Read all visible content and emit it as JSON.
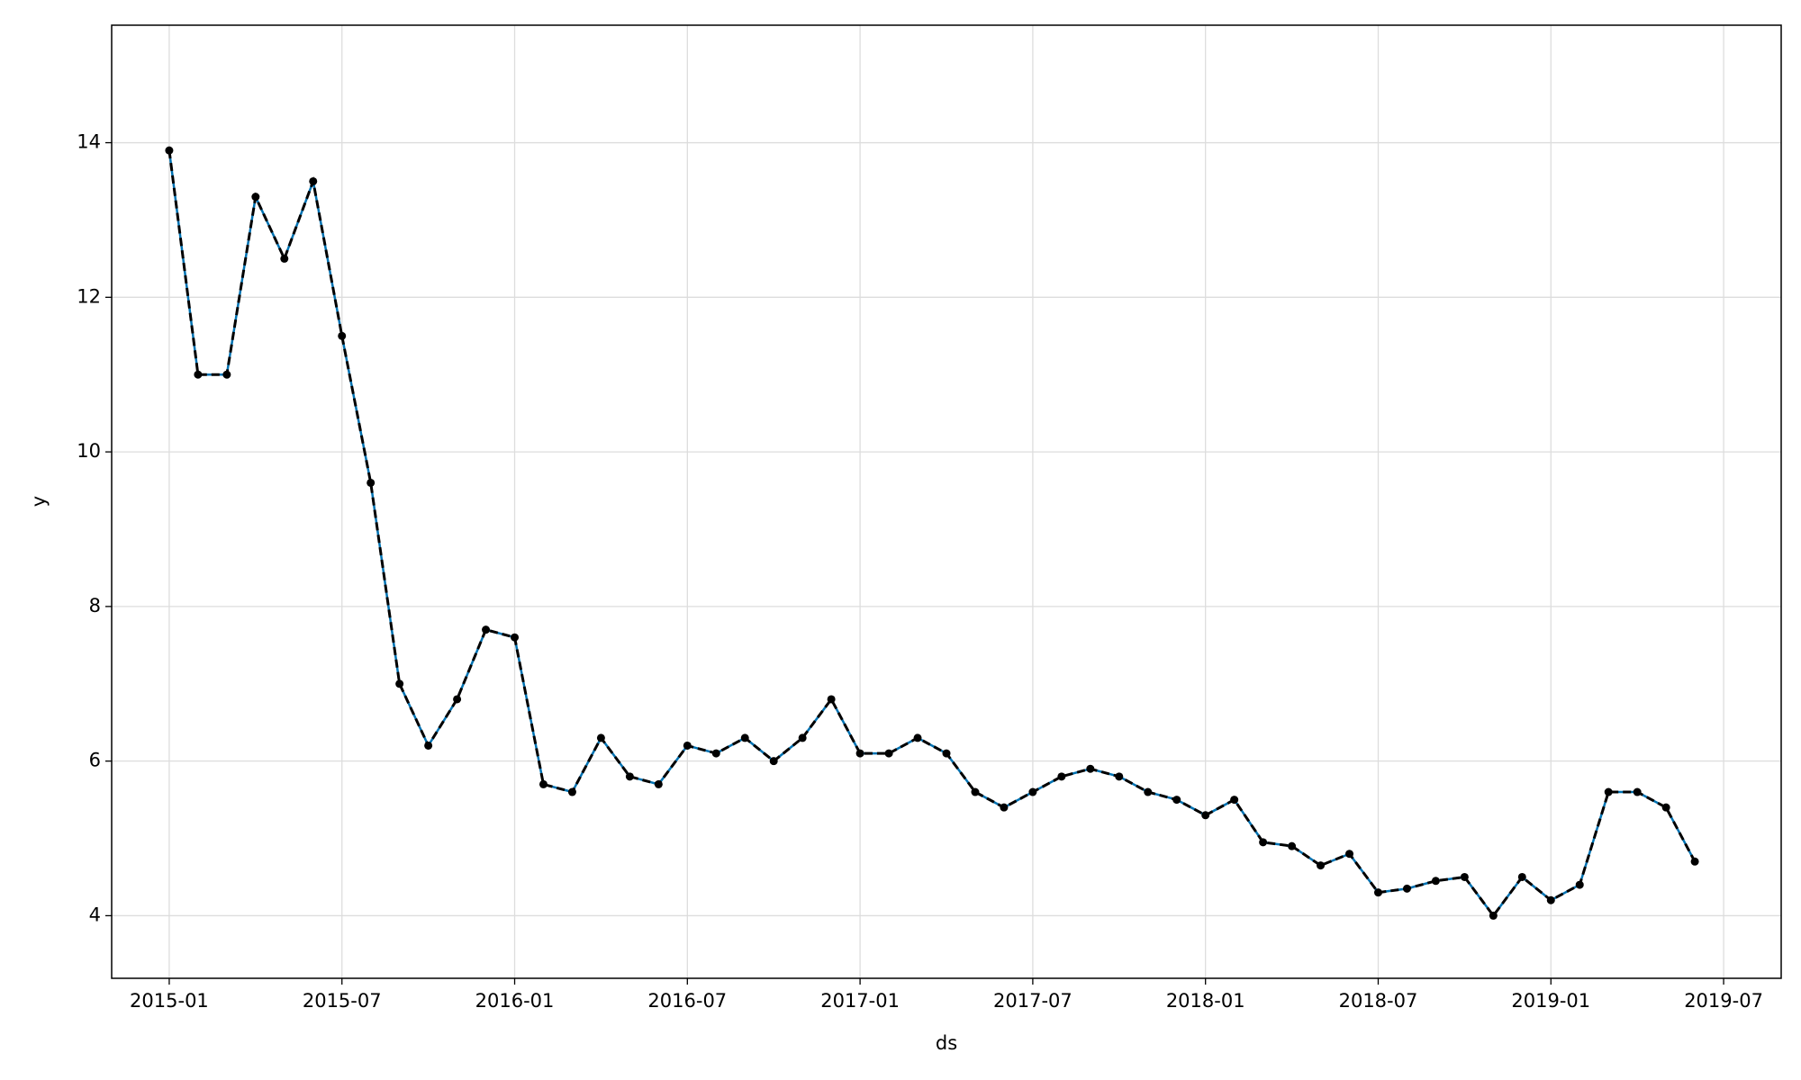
{
  "chart_data": {
    "type": "line",
    "x_label": "ds",
    "y_label": "y",
    "x": [
      "2015-01",
      "2015-02",
      "2015-03",
      "2015-04",
      "2015-05",
      "2015-06",
      "2015-07",
      "2015-08",
      "2015-09",
      "2015-10",
      "2015-11",
      "2015-12",
      "2016-01",
      "2016-02",
      "2016-03",
      "2016-04",
      "2016-05",
      "2016-06",
      "2016-07",
      "2016-08",
      "2016-09",
      "2016-10",
      "2016-11",
      "2016-12",
      "2017-01",
      "2017-02",
      "2017-03",
      "2017-04",
      "2017-05",
      "2017-06",
      "2017-07",
      "2017-08",
      "2017-09",
      "2017-10",
      "2017-11",
      "2017-12",
      "2018-01",
      "2018-02",
      "2018-03",
      "2018-04",
      "2018-05",
      "2018-06",
      "2018-07",
      "2018-08",
      "2018-09",
      "2018-10",
      "2018-11",
      "2018-12",
      "2019-01",
      "2019-02",
      "2019-03",
      "2019-04",
      "2019-05",
      "2019-06"
    ],
    "series": [
      {
        "color": "#000000",
        "linestyle": "dashed",
        "marker": true,
        "values": [
          13.9,
          11.0,
          11.0,
          13.3,
          12.5,
          13.5,
          11.5,
          9.6,
          7.0,
          6.2,
          6.8,
          7.7,
          7.6,
          5.7,
          5.6,
          6.3,
          5.8,
          5.7,
          6.2,
          6.1,
          6.3,
          6.0,
          6.3,
          6.8,
          6.1,
          6.1,
          6.3,
          6.1,
          5.6,
          5.4,
          5.6,
          5.8,
          5.9,
          5.8,
          5.6,
          5.5,
          5.3,
          5.5,
          4.95,
          4.9,
          4.65,
          4.8,
          4.3,
          4.35,
          4.45,
          4.5,
          4.0,
          4.5,
          4.2,
          4.4,
          5.6,
          5.6,
          5.4,
          4.7
        ]
      },
      {
        "color": "#0072B2",
        "linestyle": "solid",
        "marker": false,
        "values": [
          13.9,
          11.0,
          11.0,
          13.3,
          12.5,
          13.5,
          11.5,
          9.6,
          7.0,
          6.2,
          6.8,
          7.7,
          7.6,
          5.7,
          5.6,
          6.3,
          5.8,
          5.7,
          6.2,
          6.1,
          6.3,
          6.0,
          6.3,
          6.8,
          6.1,
          6.1,
          6.3,
          6.1,
          5.6,
          5.4,
          5.6,
          5.8,
          5.9,
          5.8,
          5.6,
          5.5,
          5.3,
          5.5,
          4.95,
          4.9,
          4.65,
          4.8,
          4.3,
          4.35,
          4.45,
          4.5,
          4.0,
          4.5,
          4.2,
          4.4,
          5.6,
          5.6,
          5.4,
          4.7
        ]
      }
    ],
    "xlim": [
      "2014-11",
      "2019-09"
    ],
    "xticks": [
      "2015-01",
      "2015-07",
      "2016-01",
      "2016-07",
      "2017-01",
      "2017-07",
      "2018-01",
      "2018-07",
      "2019-01",
      "2019-07"
    ],
    "ylim": [
      3.19,
      15.52
    ],
    "yticks": [
      4,
      6,
      8,
      10,
      12,
      14
    ],
    "grid": true
  }
}
